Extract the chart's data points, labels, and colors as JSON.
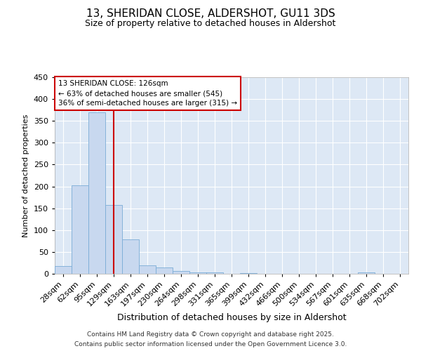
{
  "title": "13, SHERIDAN CLOSE, ALDERSHOT, GU11 3DS",
  "subtitle": "Size of property relative to detached houses in Aldershot",
  "xlabel": "Distribution of detached houses by size in Aldershot",
  "ylabel": "Number of detached properties",
  "bar_values": [
    18,
    202,
    370,
    158,
    79,
    20,
    15,
    7,
    4,
    3,
    0,
    2,
    0,
    0,
    0,
    0,
    0,
    0,
    3,
    0,
    0
  ],
  "categories": [
    "28sqm",
    "62sqm",
    "95sqm",
    "129sqm",
    "163sqm",
    "197sqm",
    "230sqm",
    "264sqm",
    "298sqm",
    "331sqm",
    "365sqm",
    "399sqm",
    "432sqm",
    "466sqm",
    "500sqm",
    "534sqm",
    "567sqm",
    "601sqm",
    "635sqm",
    "668sqm",
    "702sqm"
  ],
  "bar_color": "#c8d8ef",
  "bar_edge_color": "#7aacd6",
  "plot_bg_color": "#dde8f5",
  "fig_bg_color": "#ffffff",
  "grid_color": "#ffffff",
  "vline_index": 3,
  "vline_color": "#cc0000",
  "annotation_line1": "13 SHERIDAN CLOSE: 126sqm",
  "annotation_line2": "← 63% of detached houses are smaller (545)",
  "annotation_line3": "36% of semi-detached houses are larger (315) →",
  "annotation_box_edgecolor": "#cc0000",
  "annotation_box_facecolor": "#ffffff",
  "ylim_max": 450,
  "yticks": [
    0,
    50,
    100,
    150,
    200,
    250,
    300,
    350,
    400,
    450
  ],
  "footer1": "Contains HM Land Registry data © Crown copyright and database right 2025.",
  "footer2": "Contains public sector information licensed under the Open Government Licence 3.0.",
  "title_fontsize": 11,
  "subtitle_fontsize": 9,
  "ylabel_fontsize": 8,
  "xlabel_fontsize": 9,
  "tick_fontsize": 8,
  "footer_fontsize": 6.5
}
